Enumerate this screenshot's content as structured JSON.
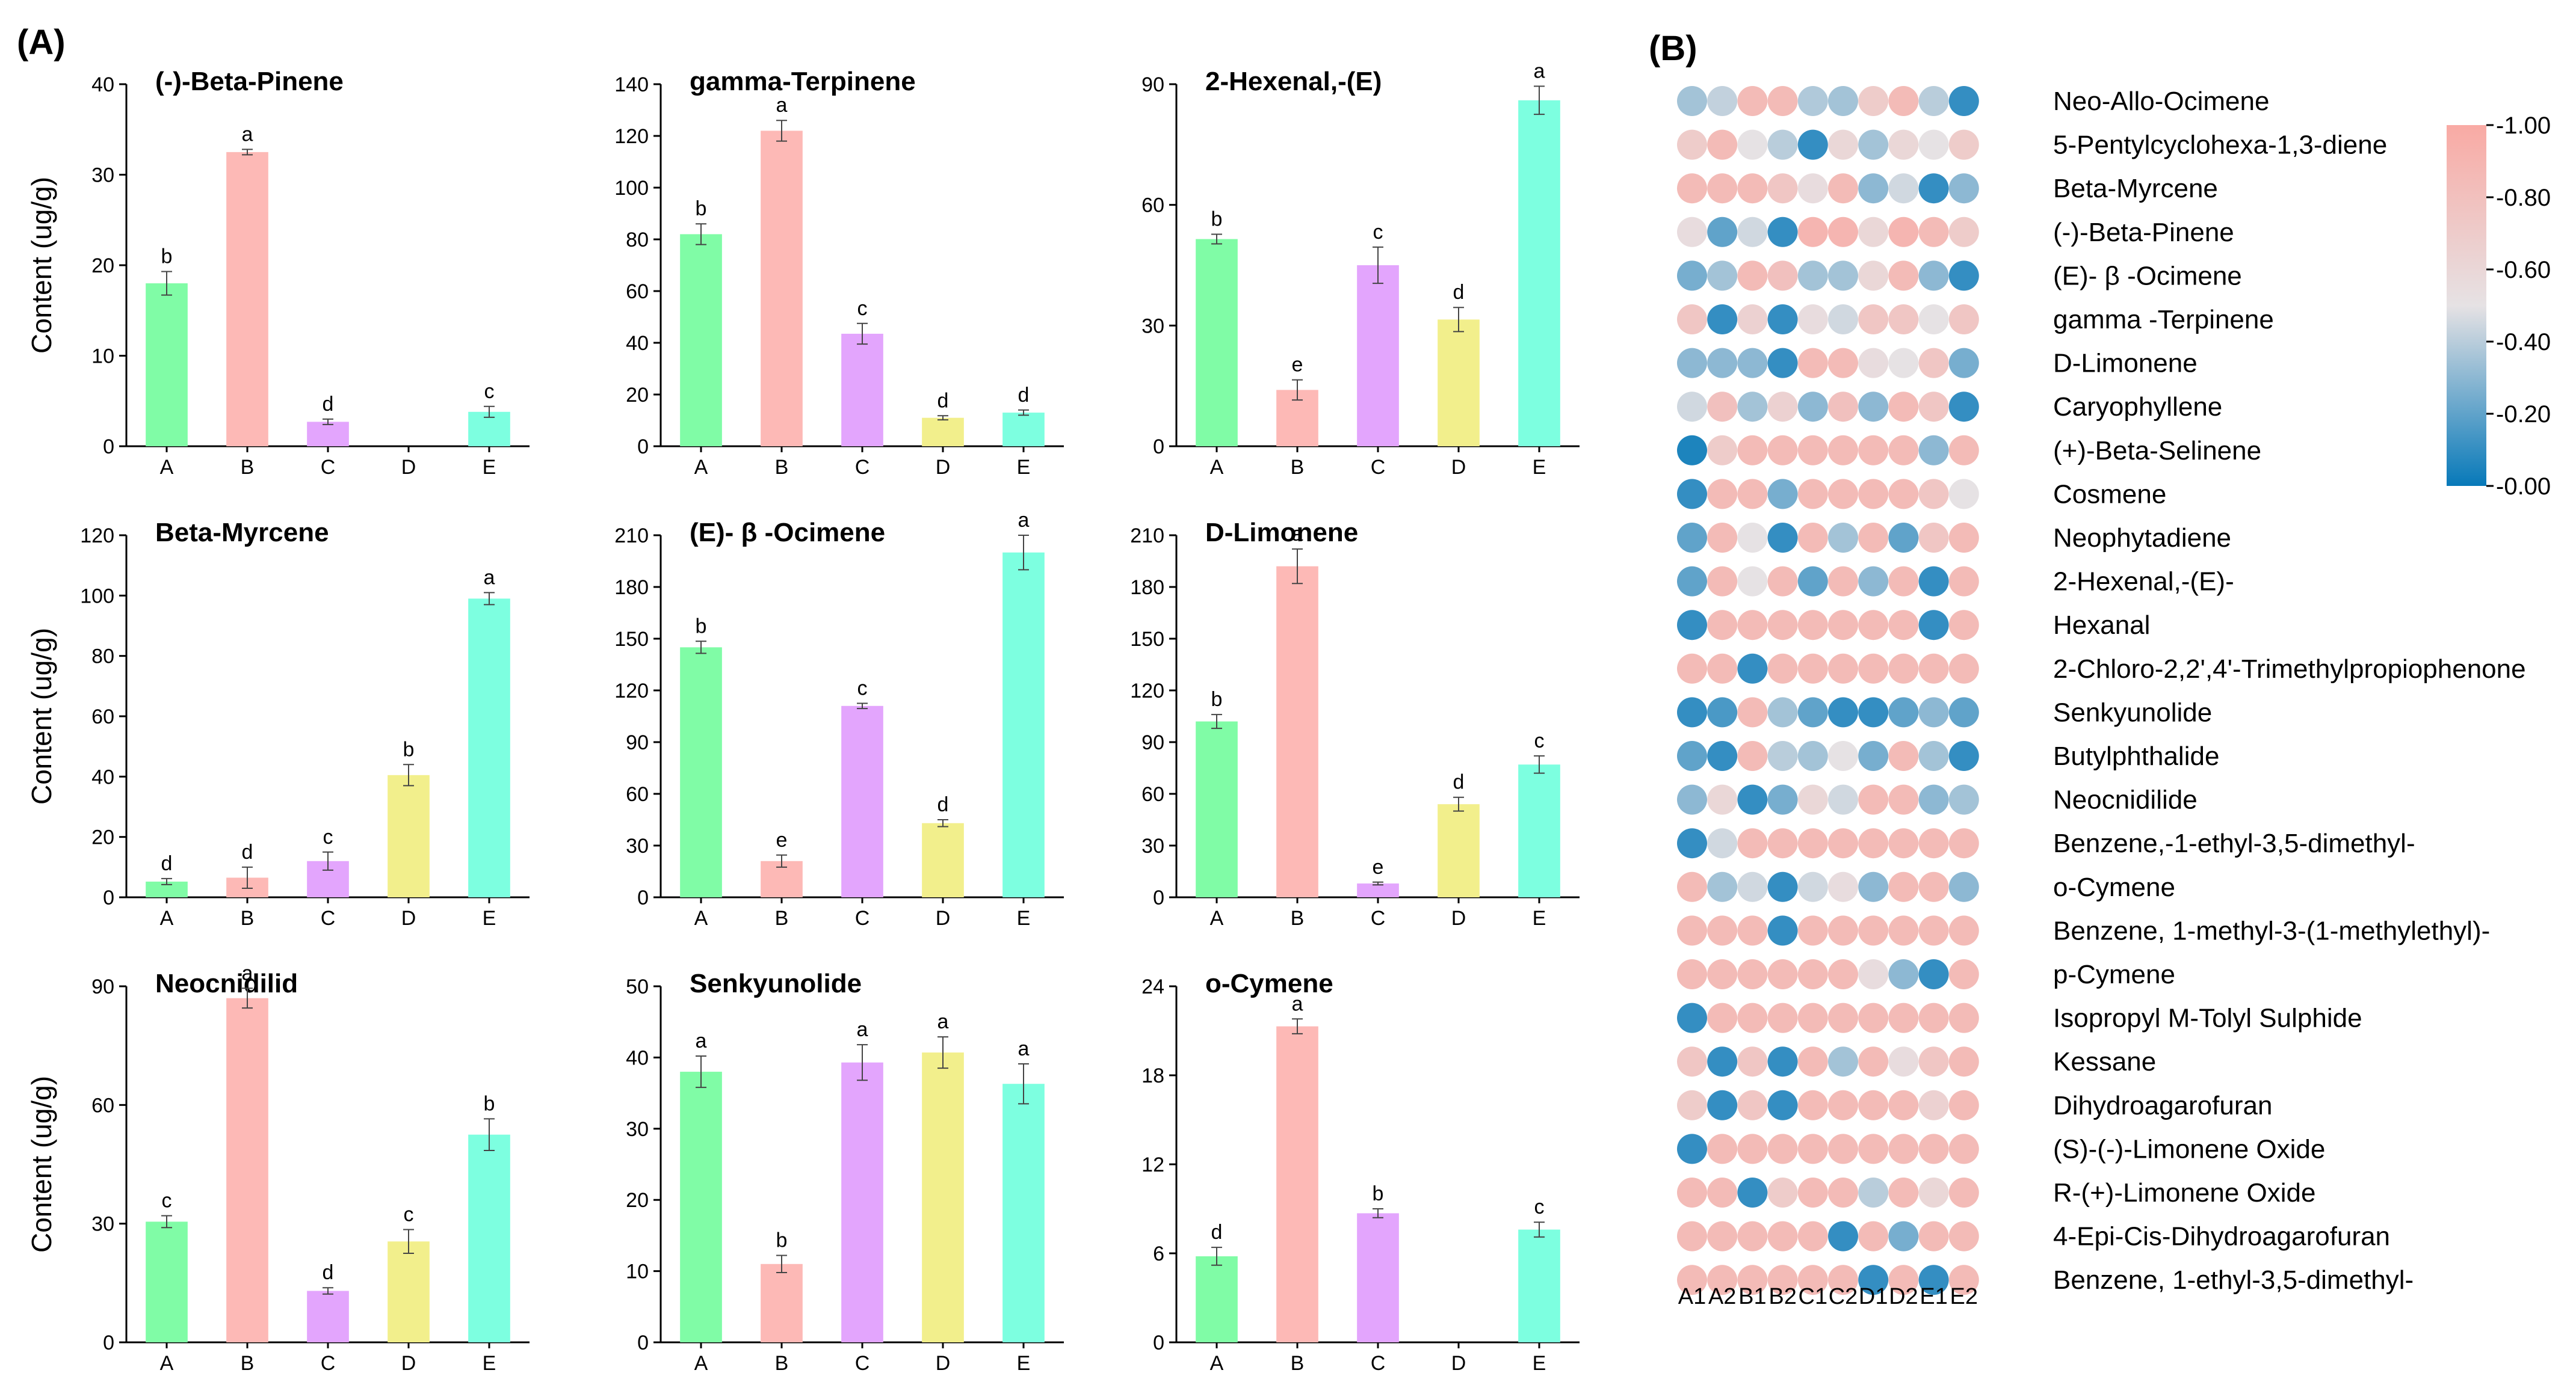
{
  "labels": {
    "panel_a": "(A)",
    "panel_b": "(B)"
  },
  "chart_data": [
    {
      "type": "bar",
      "title": "(-)-Beta-Pinene",
      "ylabel": "Content (ug/g)",
      "categories": [
        "A",
        "B",
        "C",
        "D",
        "E"
      ],
      "values": [
        18,
        32.5,
        2.7,
        0,
        3.8
      ],
      "errors": [
        1.3,
        0.3,
        0.3,
        0,
        0.6
      ],
      "letters": [
        "b",
        "a",
        "d",
        "",
        "c"
      ],
      "ylim": [
        0,
        40
      ],
      "yticks": [
        "0",
        "10",
        "20",
        "30",
        "40"
      ]
    },
    {
      "type": "bar",
      "title": "gamma-Terpinene",
      "ylabel": "",
      "categories": [
        "A",
        "B",
        "C",
        "D",
        "E"
      ],
      "values": [
        82,
        122,
        43.5,
        11,
        13
      ],
      "errors": [
        4,
        4,
        4,
        0.8,
        1
      ],
      "letters": [
        "b",
        "a",
        "c",
        "d",
        "d"
      ],
      "ylim": [
        0,
        140
      ],
      "yticks": [
        "0",
        "20",
        "40",
        "60",
        "80",
        "100",
        "120",
        "140"
      ]
    },
    {
      "type": "bar",
      "title": "2-Hexenal,-(E)",
      "ylabel": "",
      "categories": [
        "A",
        "B",
        "C",
        "D",
        "E"
      ],
      "values": [
        51.5,
        14,
        45,
        31.5,
        86
      ],
      "errors": [
        1.2,
        2.5,
        4.5,
        3,
        3.5
      ],
      "letters": [
        "b",
        "e",
        "c",
        "d",
        "a"
      ],
      "ylim": [
        0,
        90
      ],
      "yticks": [
        "0",
        "30",
        "60",
        "90"
      ]
    },
    {
      "type": "bar",
      "title": "Beta-Myrcene",
      "ylabel": "Content (ug/g)",
      "categories": [
        "A",
        "B",
        "C",
        "D",
        "E"
      ],
      "values": [
        5.2,
        6.5,
        12,
        40.5,
        99
      ],
      "errors": [
        1,
        3.5,
        3,
        3.5,
        2
      ],
      "letters": [
        "d",
        "d",
        "c",
        "b",
        "a"
      ],
      "ylim": [
        0,
        120
      ],
      "yticks": [
        "0",
        "20",
        "40",
        "60",
        "80",
        "100",
        "120"
      ]
    },
    {
      "type": "bar",
      "title": "(E)- β -Ocimene",
      "ylabel": "",
      "categories": [
        "A",
        "B",
        "C",
        "D",
        "E"
      ],
      "values": [
        145,
        21,
        111,
        43,
        200
      ],
      "errors": [
        3.5,
        3.5,
        1.5,
        2,
        10
      ],
      "letters": [
        "b",
        "e",
        "c",
        "d",
        "a"
      ],
      "ylim": [
        0,
        210
      ],
      "yticks": [
        "0",
        "30",
        "60",
        "90",
        "120",
        "150",
        "180",
        "210"
      ]
    },
    {
      "type": "bar",
      "title": "D-Limonene",
      "ylabel": "",
      "categories": [
        "A",
        "B",
        "C",
        "D",
        "E"
      ],
      "values": [
        102,
        192,
        8,
        54,
        77
      ],
      "errors": [
        4,
        10,
        0.8,
        4,
        5
      ],
      "letters": [
        "b",
        "a",
        "e",
        "d",
        "c"
      ],
      "ylim": [
        0,
        210
      ],
      "yticks": [
        "0",
        "30",
        "60",
        "90",
        "120",
        "150",
        "180",
        "210"
      ]
    },
    {
      "type": "bar",
      "title": "Neocnidilid",
      "ylabel": "Content (ug/g)",
      "categories": [
        "A",
        "B",
        "C",
        "D",
        "E"
      ],
      "values": [
        30.5,
        87,
        13,
        25.5,
        52.5
      ],
      "errors": [
        1.5,
        2.5,
        0.8,
        3,
        4
      ],
      "letters": [
        "c",
        "a",
        "d",
        "c",
        "b"
      ],
      "ylim": [
        0,
        90
      ],
      "yticks": [
        "0",
        "30",
        "60",
        "90"
      ]
    },
    {
      "type": "bar",
      "title": "Senkyunolide",
      "ylabel": "",
      "categories": [
        "A",
        "B",
        "C",
        "D",
        "E"
      ],
      "values": [
        38,
        11,
        39.3,
        40.7,
        36.3
      ],
      "errors": [
        2.2,
        1.2,
        2.5,
        2.2,
        2.8
      ],
      "letters": [
        "a",
        "b",
        "a",
        "a",
        "a"
      ],
      "ylim": [
        0,
        50
      ],
      "yticks": [
        "0",
        "10",
        "20",
        "30",
        "40",
        "50"
      ]
    },
    {
      "type": "bar",
      "title": "o-Cymene",
      "ylabel": "",
      "categories": [
        "A",
        "B",
        "C",
        "D",
        "E"
      ],
      "values": [
        5.8,
        21.3,
        8.7,
        0,
        7.6
      ],
      "errors": [
        0.6,
        0.5,
        0.3,
        0,
        0.5
      ],
      "letters": [
        "d",
        "a",
        "b",
        "",
        "c"
      ],
      "ylim": [
        0,
        24
      ],
      "yticks": [
        "0",
        "6",
        "12",
        "18",
        "24"
      ]
    },
    {
      "type": "heatmap",
      "columns": [
        "A1",
        "A2",
        "B1",
        "B2",
        "C1",
        "C2",
        "D1",
        "D2",
        "E1",
        "E2"
      ],
      "rows": [
        "Neo-Allo-Ocimene",
        "5-Pentylcyclohexa-1,3-diene",
        "Beta-Myrcene",
        "(-)-Beta-Pinene",
        "(E)- β -Ocimene",
        " gamma -Terpinene",
        "D-Limonene",
        "Caryophyllene",
        "(+)-Beta-Selinene",
        "Cosmene",
        "Neophytadiene",
        "2-Hexenal,-(E)-",
        "Hexanal",
        "2-Chloro-2,2',4'-Trimethylpropiophenone",
        "Senkyunolide",
        "Butylphthalide",
        "Neocnidilide",
        "Benzene,-1-ethyl-3,5-dimethyl-",
        "o-Cymene",
        "Benzene, 1-methyl-3-(1-methylethyl)-",
        "p-Cymene",
        "Isopropyl M-Tolyl Sulphide",
        "Kessane",
        "Dihydroagarofuran",
        "(S)-(-)-Limonene Oxide",
        "R-(+)-Limonene Oxide",
        "4-Epi-Cis-Dihydroagarofuran",
        "Benzene, 1-ethyl-3,5-dimethyl-"
      ],
      "values": [
        [
          0.35,
          0.42,
          0.85,
          0.85,
          0.38,
          0.35,
          0.7,
          0.85,
          0.4,
          0.1
        ],
        [
          0.7,
          0.85,
          0.5,
          0.4,
          0.1,
          0.6,
          0.35,
          0.6,
          0.5,
          0.7
        ],
        [
          0.85,
          0.85,
          0.85,
          0.75,
          0.55,
          0.85,
          0.3,
          0.45,
          0.1,
          0.3
        ],
        [
          0.55,
          0.2,
          0.45,
          0.1,
          0.9,
          0.9,
          0.6,
          0.9,
          0.85,
          0.7
        ],
        [
          0.25,
          0.35,
          0.85,
          0.8,
          0.35,
          0.35,
          0.6,
          0.85,
          0.3,
          0.1
        ],
        [
          0.75,
          0.1,
          0.65,
          0.1,
          0.55,
          0.45,
          0.75,
          0.75,
          0.5,
          0.75
        ],
        [
          0.3,
          0.3,
          0.3,
          0.1,
          0.85,
          0.85,
          0.55,
          0.5,
          0.75,
          0.25
        ],
        [
          0.45,
          0.8,
          0.35,
          0.65,
          0.3,
          0.8,
          0.3,
          0.85,
          0.75,
          0.1
        ],
        [
          0.05,
          0.7,
          0.85,
          0.85,
          0.85,
          0.85,
          0.85,
          0.85,
          0.3,
          0.85
        ],
        [
          0.1,
          0.85,
          0.85,
          0.25,
          0.85,
          0.85,
          0.85,
          0.85,
          0.75,
          0.5
        ],
        [
          0.2,
          0.85,
          0.5,
          0.1,
          0.85,
          0.35,
          0.85,
          0.2,
          0.75,
          0.85
        ],
        [
          0.2,
          0.85,
          0.5,
          0.85,
          0.2,
          0.85,
          0.3,
          0.85,
          0.1,
          0.85
        ],
        [
          0.1,
          0.85,
          0.85,
          0.85,
          0.85,
          0.85,
          0.85,
          0.85,
          0.1,
          0.85
        ],
        [
          0.85,
          0.85,
          0.1,
          0.85,
          0.85,
          0.85,
          0.85,
          0.85,
          0.85,
          0.85
        ],
        [
          0.1,
          0.15,
          0.85,
          0.35,
          0.2,
          0.1,
          0.1,
          0.2,
          0.3,
          0.2
        ],
        [
          0.2,
          0.1,
          0.85,
          0.4,
          0.35,
          0.5,
          0.25,
          0.85,
          0.35,
          0.1
        ],
        [
          0.3,
          0.6,
          0.1,
          0.25,
          0.6,
          0.45,
          0.85,
          0.85,
          0.3,
          0.35
        ],
        [
          0.1,
          0.45,
          0.85,
          0.85,
          0.85,
          0.85,
          0.85,
          0.85,
          0.85,
          0.85
        ],
        [
          0.85,
          0.35,
          0.45,
          0.1,
          0.45,
          0.55,
          0.3,
          0.85,
          0.85,
          0.3
        ],
        [
          0.85,
          0.85,
          0.85,
          0.1,
          0.85,
          0.85,
          0.85,
          0.85,
          0.85,
          0.85
        ],
        [
          0.85,
          0.85,
          0.85,
          0.85,
          0.85,
          0.85,
          0.55,
          0.3,
          0.1,
          0.85
        ],
        [
          0.1,
          0.85,
          0.85,
          0.85,
          0.85,
          0.85,
          0.85,
          0.85,
          0.85,
          0.85
        ],
        [
          0.75,
          0.1,
          0.75,
          0.1,
          0.85,
          0.35,
          0.85,
          0.55,
          0.75,
          0.85
        ],
        [
          0.7,
          0.1,
          0.75,
          0.1,
          0.85,
          0.85,
          0.85,
          0.85,
          0.65,
          0.85
        ],
        [
          0.1,
          0.85,
          0.85,
          0.85,
          0.85,
          0.85,
          0.85,
          0.85,
          0.85,
          0.85
        ],
        [
          0.85,
          0.85,
          0.1,
          0.7,
          0.85,
          0.85,
          0.4,
          0.85,
          0.6,
          0.85
        ],
        [
          0.85,
          0.85,
          0.85,
          0.85,
          0.85,
          0.1,
          0.85,
          0.25,
          0.85,
          0.85
        ],
        [
          0.85,
          0.85,
          0.85,
          0.85,
          0.85,
          0.85,
          0.1,
          0.85,
          0.1,
          0.85
        ]
      ],
      "colorbar": {
        "ticks": [
          "-1.00",
          "-0.80",
          "-0.60",
          "-0.40",
          "-0.20",
          "-0.00"
        ],
        "low_color": "#0779b9",
        "mid_color": "#e6e2e4",
        "high_color": "#f9aaa4"
      }
    }
  ],
  "colors": {
    "A": "#80fca6",
    "B": "#fdb9b6",
    "C": "#e3a5fd",
    "D": "#f2ef8c",
    "E": "#7dffe0"
  }
}
